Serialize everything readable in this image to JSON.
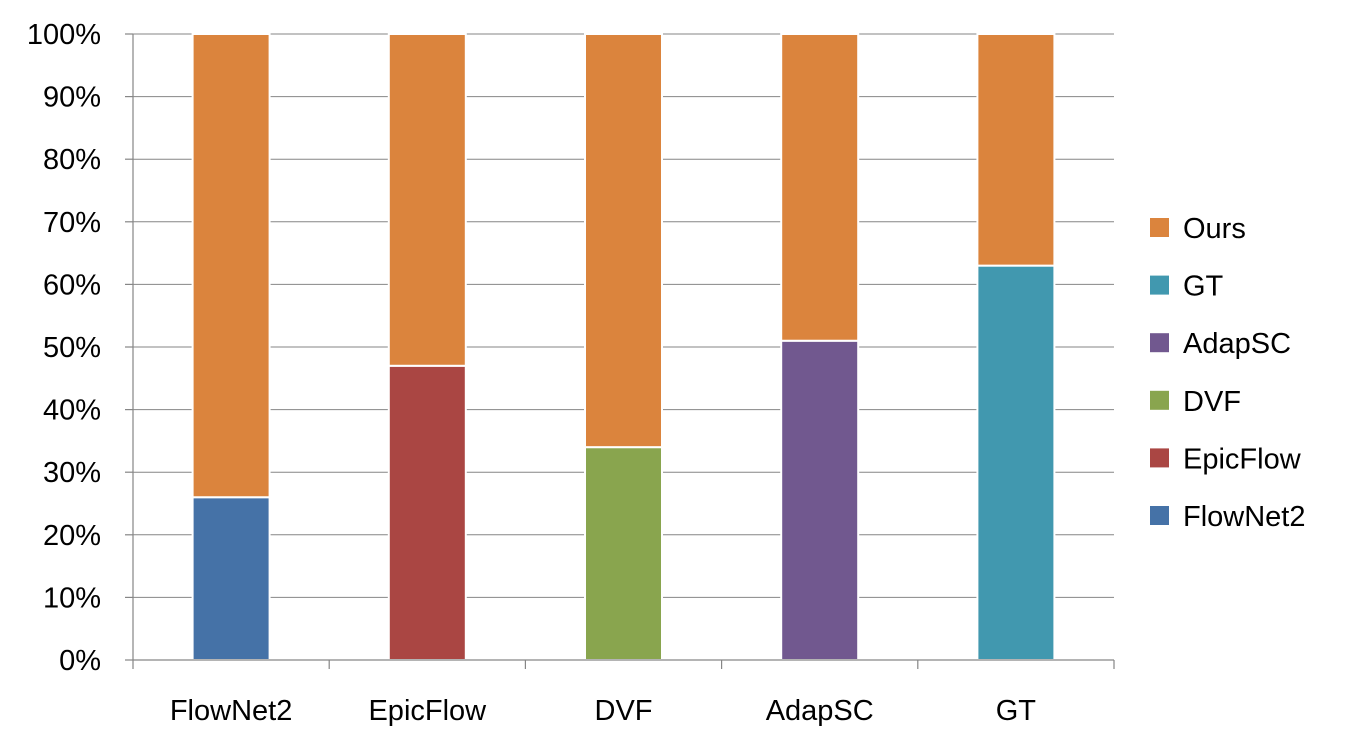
{
  "chart_data": {
    "type": "bar",
    "stacked": true,
    "normalized_percent": true,
    "title": "",
    "xlabel": "",
    "ylabel": "",
    "ylim": [
      0,
      100
    ],
    "yticks": [
      "0%",
      "10%",
      "20%",
      "30%",
      "40%",
      "50%",
      "60%",
      "70%",
      "80%",
      "90%",
      "100%"
    ],
    "grid": "horizontal",
    "legend_position": "right",
    "categories": [
      "FlowNet2",
      "EpicFlow",
      "DVF",
      "AdapSC",
      "GT"
    ],
    "series": [
      {
        "name": "FlowNet2",
        "color": "#4572A7",
        "values": [
          26,
          0,
          0,
          0,
          0
        ]
      },
      {
        "name": "EpicFlow",
        "color": "#AA4643",
        "values": [
          0,
          47,
          0,
          0,
          0
        ]
      },
      {
        "name": "DVF",
        "color": "#89A54E",
        "values": [
          0,
          0,
          34,
          0,
          0
        ]
      },
      {
        "name": "AdapSC",
        "color": "#71588F",
        "values": [
          0,
          0,
          0,
          51,
          0
        ]
      },
      {
        "name": "GT",
        "color": "#4198AF",
        "values": [
          0,
          0,
          0,
          0,
          63
        ]
      },
      {
        "name": "Ours",
        "color": "#DB843D",
        "values": [
          74,
          53,
          66,
          49,
          37
        ]
      }
    ],
    "legend_order": [
      "Ours",
      "GT",
      "AdapSC",
      "DVF",
      "EpicFlow",
      "FlowNet2"
    ]
  }
}
